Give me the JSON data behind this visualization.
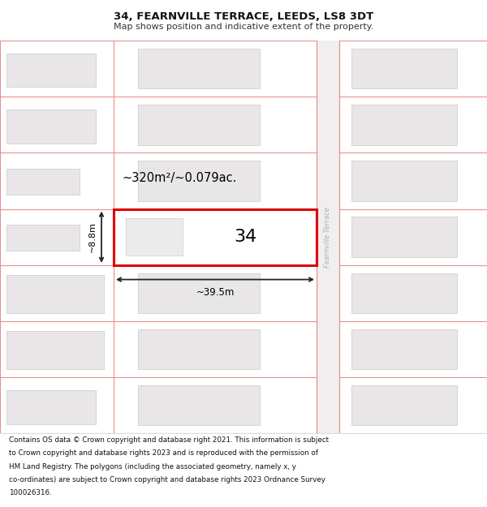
{
  "title": "34, FEARNVILLE TERRACE, LEEDS, LS8 3DT",
  "subtitle": "Map shows position and indicative extent of the property.",
  "footer": "Contains OS data © Crown copyright and database right 2021. This information is subject to Crown copyright and database rights 2023 and is reproduced with the permission of HM Land Registry. The polygons (including the associated geometry, namely x, y co-ordinates) are subject to Crown copyright and database rights 2023 Ordnance Survey 100026316.",
  "map_bg": "#ffffff",
  "plot_outline_color": "#e89090",
  "building_fill": "#e8e6e6",
  "building_outline": "#d0c8c8",
  "highlight_color": "#dd0000",
  "highlight_fill": "#ffffff",
  "dim_color": "#222222",
  "road_label_color": "#b0b0b0",
  "area_text": "~320m²/~0.079ac.",
  "width_text": "~39.5m",
  "height_text": "~8.8m",
  "number_text": "34",
  "road_label": "Fearnville Terrace",
  "title_fontsize": 9.5,
  "subtitle_fontsize": 8.0,
  "footer_fontsize": 6.3
}
